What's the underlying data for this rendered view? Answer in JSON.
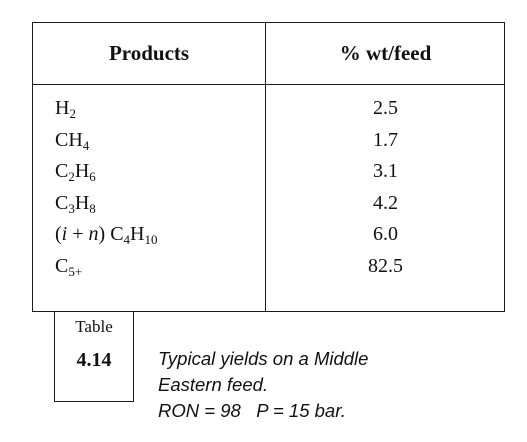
{
  "table": {
    "headers": {
      "products": "Products",
      "wt_feed": "% wt/feed"
    },
    "rows": [
      {
        "base": "H",
        "sub1": "2",
        "mid": "",
        "sub2": "",
        "prefix_open": "",
        "prefix_i": "",
        "prefix_mid": "",
        "prefix_n": "",
        "prefix_close": "",
        "value": "2.5"
      },
      {
        "base": "CH",
        "sub1": "4",
        "mid": "",
        "sub2": "",
        "prefix_open": "",
        "prefix_i": "",
        "prefix_mid": "",
        "prefix_n": "",
        "prefix_close": "",
        "value": "1.7"
      },
      {
        "base": "C",
        "sub1": "2",
        "mid": "H",
        "sub2": "6",
        "prefix_open": "",
        "prefix_i": "",
        "prefix_mid": "",
        "prefix_n": "",
        "prefix_close": "",
        "value": "3.1"
      },
      {
        "base": "C",
        "sub1": "3",
        "mid": "H",
        "sub2": "8",
        "prefix_open": "",
        "prefix_i": "",
        "prefix_mid": "",
        "prefix_n": "",
        "prefix_close": "",
        "value": "4.2"
      },
      {
        "base": "C",
        "sub1": "4",
        "mid": "H",
        "sub2": "10",
        "prefix_open": "(",
        "prefix_i": "i",
        "prefix_mid": " + ",
        "prefix_n": "n",
        "prefix_close": ") ",
        "value": "6.0"
      },
      {
        "base": "C",
        "sub1": "5+",
        "mid": "",
        "sub2": "",
        "prefix_open": "",
        "prefix_i": "",
        "prefix_mid": "",
        "prefix_n": "",
        "prefix_close": "",
        "value": "82.5"
      }
    ]
  },
  "caption": {
    "label": "Table",
    "number": "4.14",
    "lines": [
      "Typical yields on a Middle",
      "Eastern feed.",
      "RON = 98   P = 15 bar."
    ]
  }
}
